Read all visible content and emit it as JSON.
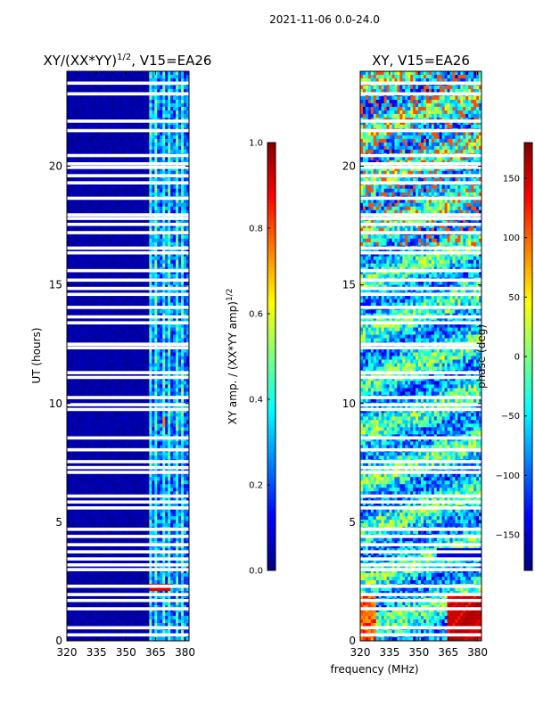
{
  "chart_data": [
    {
      "type": "heatmap",
      "figure_title": "2021-11-06 0.0-24.0",
      "title": "XY/(XX*YY)",
      "title_superscript": "1/2",
      "title_suffix": ", V15=EA26",
      "xlabel": "",
      "ylabel": "UT (hours)",
      "xlim": [
        320,
        382
      ],
      "ylim": [
        0,
        24
      ],
      "xticks": [
        "320",
        "335",
        "350",
        "365",
        "380"
      ],
      "yticks": [
        "0",
        "5",
        "10",
        "15",
        "20"
      ],
      "colorbar": {
        "label": "XY amp. / (XX*YY amp)",
        "label_superscript": "1/2",
        "range": [
          0.0,
          1.0
        ],
        "ticks": [
          "0.0",
          "0.2",
          "0.4",
          "0.6",
          "0.8",
          "1.0"
        ],
        "colormap": "jet"
      },
      "band_start_mhz": 363
    },
    {
      "type": "heatmap",
      "title": "XY, V15=EA26",
      "xlabel": "frequency (MHz)",
      "ylabel": "",
      "xlim": [
        320,
        382
      ],
      "ylim": [
        0,
        24
      ],
      "xticks": [
        "320",
        "335",
        "350",
        "365",
        "380"
      ],
      "yticks": [
        "0",
        "5",
        "10",
        "15",
        "20"
      ],
      "colorbar": {
        "label": "phase (deg)",
        "range": [
          -180,
          180
        ],
        "ticks": [
          "−150",
          "−100",
          "−50",
          "0",
          "50",
          "100",
          "150"
        ],
        "colormap": "jet"
      }
    }
  ],
  "flagged_hours": [
    0.25,
    0.55,
    1.35,
    1.7,
    1.95,
    2.3,
    3.0,
    3.2,
    3.45,
    3.75,
    4.05,
    4.4,
    4.7,
    5.6,
    5.85,
    6.1,
    7.1,
    7.3,
    7.55,
    8.05,
    8.55,
    9.75,
    9.95,
    10.25,
    11.1,
    11.3,
    12.35,
    12.5,
    13.4,
    13.65,
    14.05,
    14.6,
    14.85,
    15.2,
    15.6,
    16.35,
    16.55,
    17.2,
    17.55,
    17.8,
    17.95,
    18.65,
    19.3,
    19.6,
    19.95,
    20.1,
    20.45,
    21.5,
    21.9,
    23.05,
    23.5
  ]
}
